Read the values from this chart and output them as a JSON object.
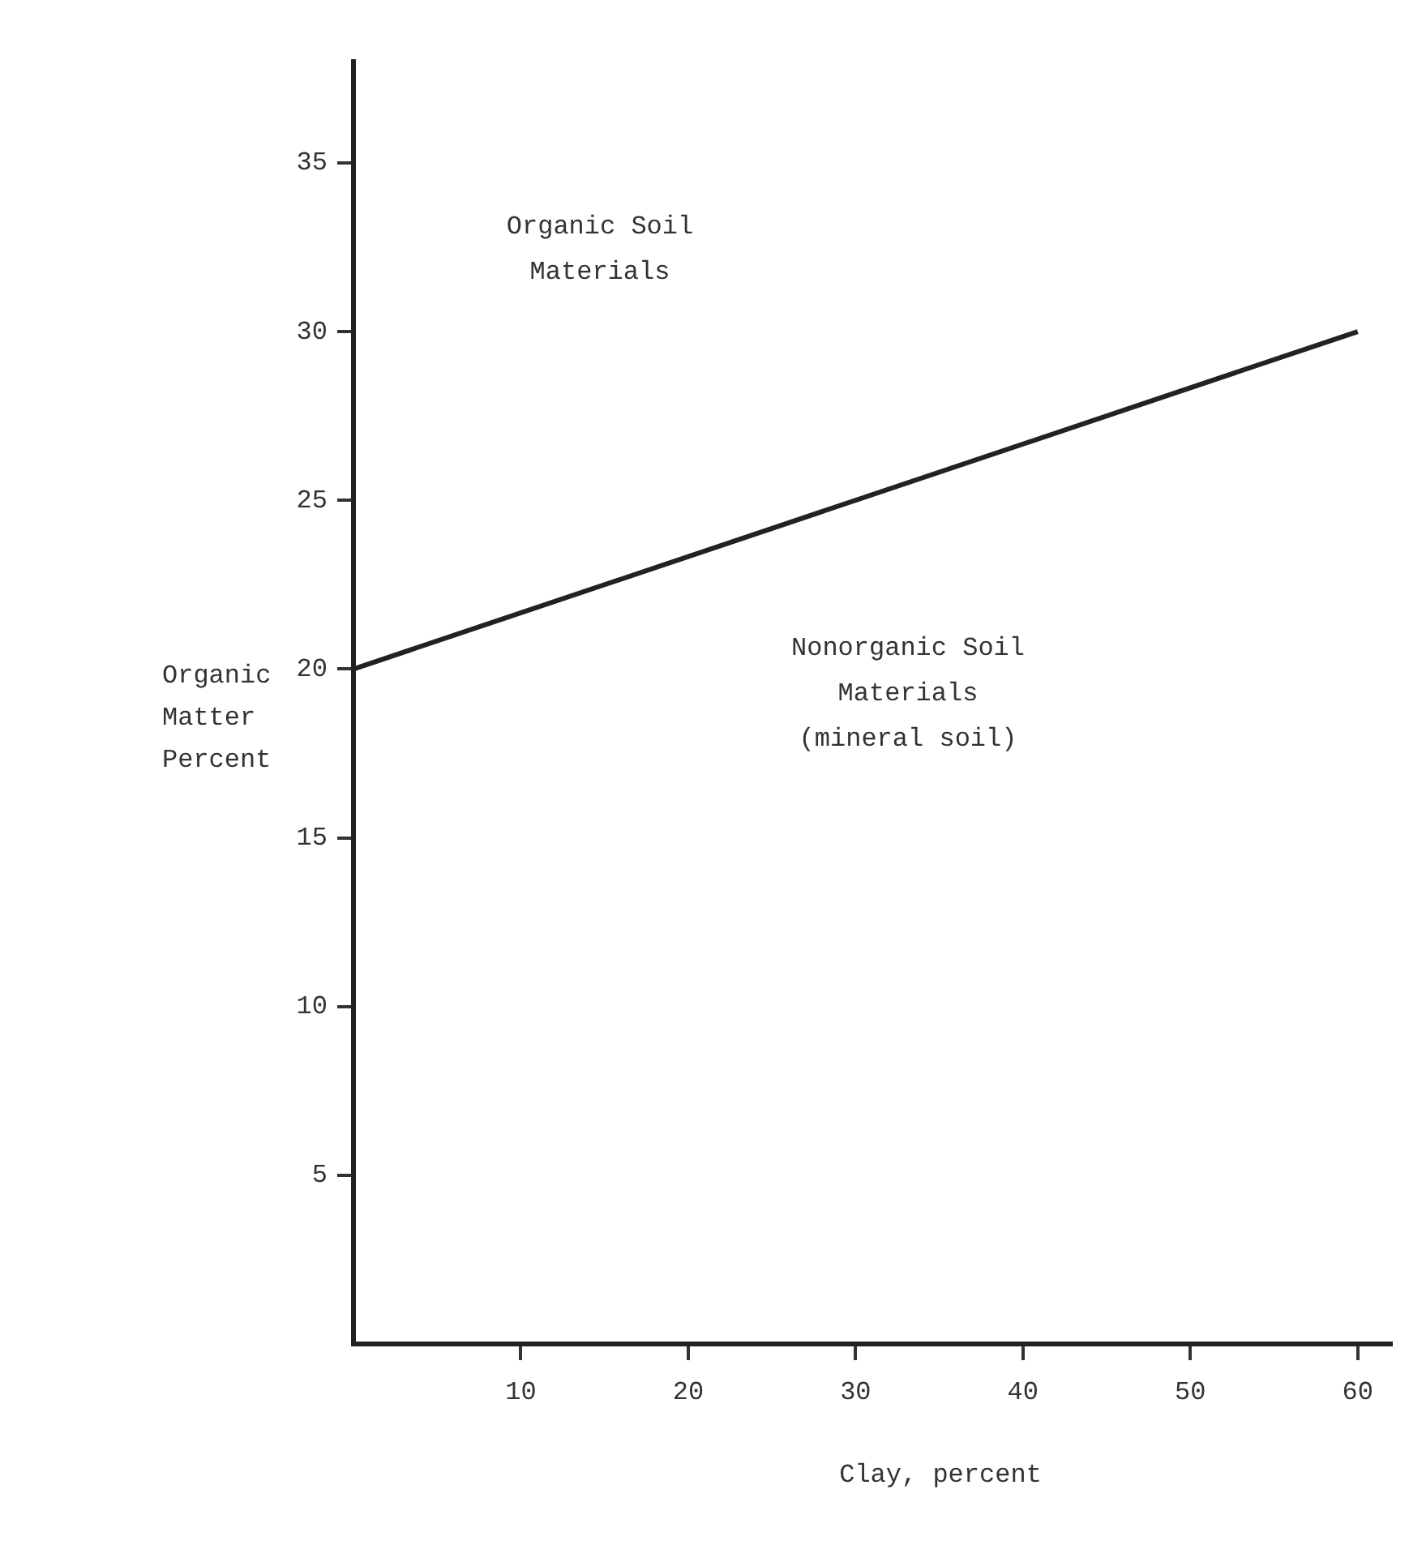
{
  "chart_data": {
    "type": "line",
    "xlabel": "Clay, percent",
    "ylabel": "Organic\nMatter\nPercent",
    "annotations": [
      "Organic Soil\nMaterials",
      "Nonorganic Soil\nMaterials\n(mineral soil)"
    ],
    "series": [
      {
        "color": "#222222",
        "x": [
          0,
          60
        ],
        "values": [
          20,
          30
        ]
      }
    ],
    "xlim": [
      0,
      62
    ],
    "xticks": [
      10,
      20,
      30,
      40,
      50,
      60
    ],
    "ylim": [
      0,
      38
    ],
    "yticks": [
      5,
      10,
      15,
      20,
      25,
      30,
      35
    ],
    "grid": false,
    "legend": false,
    "marker": "none",
    "line_style": "solid"
  }
}
